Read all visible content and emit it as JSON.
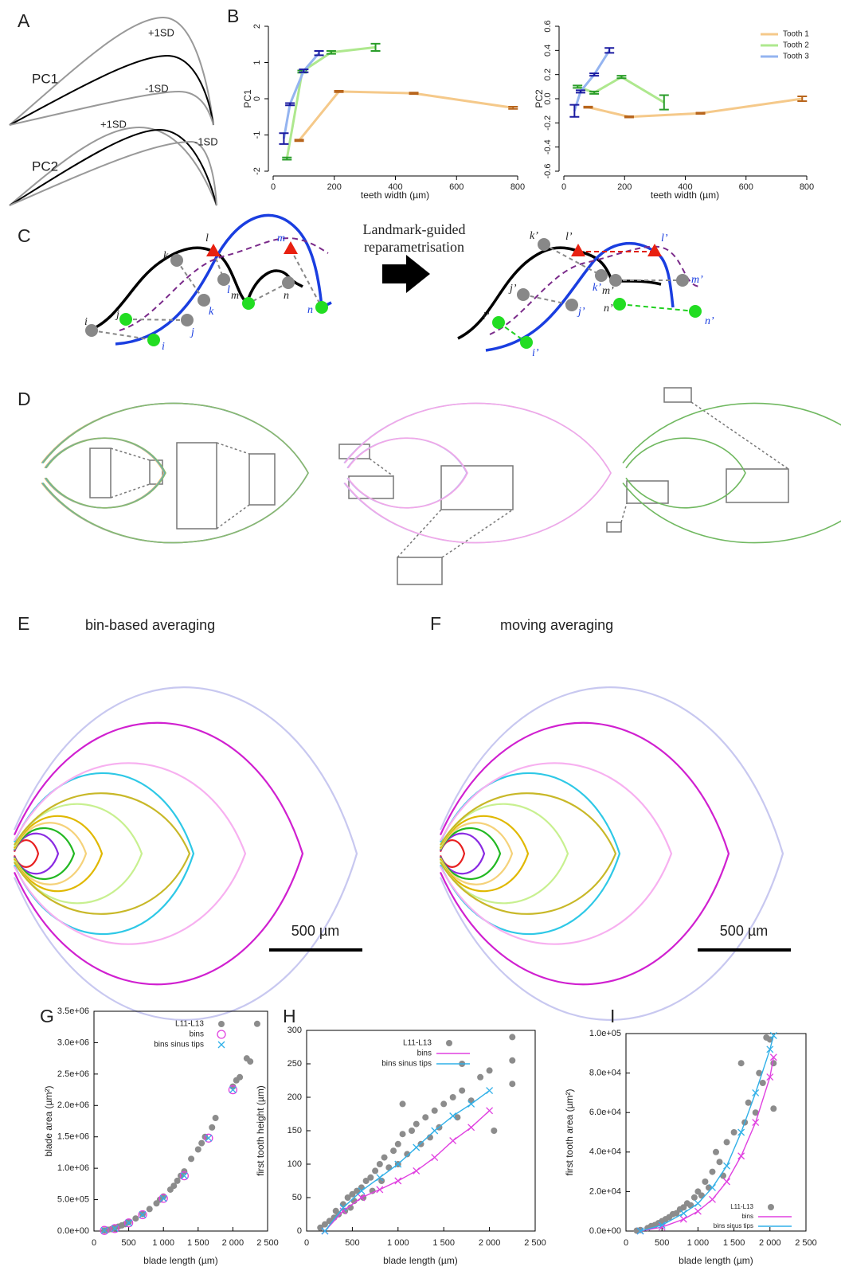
{
  "panel_labels": [
    "A",
    "B",
    "C",
    "D",
    "E",
    "F",
    "G",
    "H",
    "I"
  ],
  "panel_a": {
    "rows": [
      {
        "label": "PC1",
        "plus": "+1SD",
        "minus": "-1SD"
      },
      {
        "label": "PC2",
        "plus": "+1SD",
        "minus": "-1SD"
      }
    ]
  },
  "panel_c": {
    "caption": [
      "Landmark-guided",
      "reparametrisation"
    ],
    "left_landmarks": [
      "i",
      "j",
      "k",
      "l",
      "m",
      "n"
    ],
    "right_landmarks": [
      "i’",
      "j’",
      "k’",
      "l’",
      "m’",
      "n’"
    ]
  },
  "panel_e": {
    "title": "bin-based averaging",
    "scale_bar": "500 µm"
  },
  "panel_f": {
    "title": "moving averaging",
    "scale_bar": "500 µm"
  },
  "chart_data": [
    {
      "type": "line",
      "x_label": "teeth width (µm)",
      "y_label": "PC1",
      "xlim": [
        0,
        800
      ],
      "xticks": [
        0,
        200,
        400,
        600,
        800
      ],
      "ylim": [
        -2,
        2
      ],
      "yticks": [
        -2,
        -1,
        0,
        1,
        2
      ],
      "series": [
        {
          "color": "#f5c98a",
          "error_color": "#b8651c",
          "x": [
            85,
            215,
            460,
            785
          ],
          "values": [
            -1.15,
            0.2,
            0.15,
            -0.25
          ],
          "errors": [
            0.02,
            0.02,
            0.02,
            0.03
          ]
        },
        {
          "color": "#aee88e",
          "error_color": "#2a9d2a",
          "x": [
            45,
            95,
            190,
            335
          ],
          "values": [
            -1.65,
            0.75,
            1.28,
            1.42
          ],
          "errors": [
            0.03,
            0.03,
            0.04,
            0.1
          ]
        },
        {
          "color": "#94b4f0",
          "error_color": "#1a1aa0",
          "x": [
            35,
            55,
            100,
            150
          ],
          "values": [
            -1.1,
            -0.15,
            0.77,
            1.26
          ],
          "errors": [
            0.15,
            0.03,
            0.04,
            0.06
          ]
        }
      ]
    },
    {
      "type": "line",
      "x_label": "teeth width (µm)",
      "y_label": "PC2",
      "xlim": [
        0,
        800
      ],
      "xticks": [
        0,
        200,
        400,
        600,
        800
      ],
      "ylim": [
        -0.6,
        0.6
      ],
      "yticks": [
        -0.6,
        -0.4,
        -0.2,
        {
          "value": 0,
          "label": "0.0"
        },
        0.2,
        0.4,
        0.6
      ],
      "legend": "upper right",
      "series": [
        {
          "name": "Tooth 1",
          "color": "#f5c98a",
          "error_color": "#b8651c",
          "x": [
            80,
            215,
            450,
            785
          ],
          "values": [
            -0.07,
            -0.15,
            -0.12,
            0.0
          ],
          "errors": [
            0.005,
            0.005,
            0.005,
            0.02
          ]
        },
        {
          "name": "Tooth 2",
          "color": "#aee88e",
          "error_color": "#2a9d2a",
          "x": [
            45,
            100,
            190,
            330
          ],
          "values": [
            0.1,
            0.05,
            0.18,
            -0.03
          ],
          "errors": [
            0.01,
            0.01,
            0.01,
            0.06
          ]
        },
        {
          "name": "Tooth 3",
          "color": "#94b4f0",
          "error_color": "#1a1aa0",
          "x": [
            35,
            55,
            100,
            150
          ],
          "values": [
            -0.1,
            0.06,
            0.2,
            0.4
          ],
          "errors": [
            0.05,
            0.01,
            0.01,
            0.02
          ]
        }
      ]
    },
    {
      "type": "scatter",
      "x_label": "blade length (µm)",
      "y_label": "blade area (µm²)",
      "xlim": [
        0,
        2500
      ],
      "xticks": [
        0,
        500,
        {
          "value": 1000,
          "label": "1 000"
        },
        {
          "value": 1500,
          "label": "1 500"
        },
        {
          "value": 2000,
          "label": "2 000"
        },
        {
          "value": 2500,
          "label": "2 500"
        }
      ],
      "ylim": [
        0,
        3500000
      ],
      "yticks": [
        {
          "value": 0,
          "label": "0.0e+00"
        },
        {
          "value": 500000,
          "label": "5.0e+05"
        },
        {
          "value": 1000000,
          "label": "1.0e+06"
        },
        {
          "value": 1500000,
          "label": "1.5e+06"
        },
        {
          "value": 2000000,
          "label": "2.0e+06"
        },
        {
          "value": 2500000,
          "label": "2.5e+06"
        },
        {
          "value": 3000000,
          "label": "3.0e+06"
        },
        {
          "value": 3500000,
          "label": "3.5e+06"
        }
      ],
      "legend": "upper right",
      "series": [
        {
          "name": "L11-L13",
          "color": "#8c8c8c",
          "marker": "circle",
          "x": [
            150,
            200,
            250,
            300,
            350,
            400,
            450,
            500,
            600,
            700,
            800,
            900,
            950,
            1000,
            1100,
            1150,
            1200,
            1250,
            1300,
            1400,
            1500,
            1550,
            1600,
            1700,
            1750,
            2000,
            2050,
            2100,
            2200,
            2250,
            2350
          ],
          "values": [
            10000,
            20000,
            30000,
            50000,
            70000,
            90000,
            110000,
            140000,
            200000,
            270000,
            350000,
            440000,
            500000,
            550000,
            660000,
            720000,
            800000,
            880000,
            950000,
            1150000,
            1300000,
            1400000,
            1500000,
            1650000,
            1800000,
            2300000,
            2400000,
            2450000,
            2750000,
            2700000,
            3300000
          ]
        },
        {
          "name": "bins",
          "color": "#e040e0",
          "marker": "open-circle",
          "x": [
            150,
            300,
            500,
            700,
            1000,
            1300,
            1650,
            2000
          ],
          "values": [
            10000,
            40000,
            130000,
            260000,
            520000,
            880000,
            1480000,
            2250000
          ]
        },
        {
          "name": "bins sinus tips",
          "color": "#30b0e8",
          "marker": "x",
          "x": [
            150,
            300,
            500,
            700,
            1000,
            1300,
            1650,
            2000
          ],
          "values": [
            10000,
            40000,
            130000,
            260000,
            520000,
            880000,
            1480000,
            2250000
          ]
        }
      ]
    },
    {
      "type": "scatter",
      "x_label": "blade length (µm)",
      "y_label": "first tooth height (µm)",
      "xlim": [
        0,
        2500
      ],
      "xticks": [
        0,
        500,
        {
          "value": 1000,
          "label": "1 000"
        },
        {
          "value": 1500,
          "label": "1 500"
        },
        {
          "value": 2000,
          "label": "2 000"
        },
        {
          "value": 2500,
          "label": "2 500"
        }
      ],
      "ylim": [
        0,
        300
      ],
      "yticks": [
        0,
        50,
        100,
        150,
        200,
        250,
        300
      ],
      "legend": "upper left",
      "series": [
        {
          "name": "L11-L13",
          "color": "#8c8c8c",
          "marker": "circle",
          "x": [
            150,
            200,
            250,
            300,
            320,
            350,
            400,
            420,
            450,
            480,
            500,
            520,
            550,
            600,
            620,
            650,
            700,
            720,
            750,
            800,
            820,
            850,
            900,
            950,
            1000,
            1000,
            1050,
            1100,
            1150,
            1200,
            1250,
            1300,
            1350,
            1400,
            1450,
            1500,
            1600,
            1650,
            1700,
            1800,
            1900,
            2000,
            2050,
            2250,
            2250,
            2250,
            1050,
            1700
          ],
          "values": [
            5,
            10,
            15,
            20,
            30,
            25,
            40,
            30,
            50,
            35,
            55,
            45,
            60,
            65,
            50,
            75,
            80,
            60,
            90,
            100,
            75,
            110,
            95,
            120,
            130,
            100,
            145,
            115,
            150,
            160,
            130,
            170,
            140,
            180,
            155,
            190,
            200,
            170,
            210,
            195,
            230,
            240,
            150,
            290,
            255,
            220,
            190,
            250
          ]
        },
        {
          "name": "bins",
          "color": "#e040e0",
          "line": true,
          "marker": "x",
          "x": [
            200,
            400,
            600,
            800,
            1000,
            1200,
            1400,
            1600,
            1800,
            2000
          ],
          "values": [
            0,
            30,
            50,
            62,
            75,
            90,
            110,
            135,
            155,
            180
          ]
        },
        {
          "name": "bins sinus tips",
          "color": "#30b0e8",
          "line": true,
          "marker": "x",
          "x": [
            200,
            400,
            600,
            800,
            1000,
            1200,
            1400,
            1600,
            1800,
            2000
          ],
          "values": [
            0,
            35,
            60,
            80,
            100,
            125,
            150,
            172,
            190,
            210
          ]
        }
      ]
    },
    {
      "type": "scatter",
      "x_label": "blade length (µm)",
      "y_label": "first tooth area (µm²)",
      "xlim": [
        0,
        2500
      ],
      "xticks": [
        0,
        500,
        {
          "value": 1000,
          "label": "1 000"
        },
        {
          "value": 1500,
          "label": "1 500"
        },
        {
          "value": 2000,
          "label": "2 000"
        },
        {
          "value": 2500,
          "label": "2 500"
        }
      ],
      "ylim": [
        0,
        100000
      ],
      "yticks": [
        {
          "value": 0,
          "label": "0.0e+00"
        },
        {
          "value": 20000,
          "label": "2.0e+04"
        },
        {
          "value": 40000,
          "label": "4.0e+04"
        },
        {
          "value": 60000,
          "label": "6.0e+04"
        },
        {
          "value": 80000,
          "label": "8.0e+04"
        },
        {
          "value": 100000,
          "label": "1.0e+05"
        }
      ],
      "legend": "lower right",
      "series": [
        {
          "name": "L11-L13",
          "color": "#8c8c8c",
          "marker": "circle",
          "x": [
            150,
            200,
            300,
            350,
            400,
            450,
            500,
            550,
            600,
            650,
            700,
            750,
            800,
            850,
            900,
            950,
            1000,
            1050,
            1100,
            1150,
            1200,
            1250,
            1300,
            1350,
            1400,
            1500,
            1600,
            1650,
            1700,
            1800,
            1850,
            1900,
            1950,
            2000,
            2050,
            2050
          ],
          "values": [
            200,
            500,
            1500,
            2500,
            3000,
            4000,
            5000,
            6000,
            7000,
            8500,
            9000,
            11000,
            12000,
            14000,
            13000,
            17000,
            20000,
            18000,
            25000,
            22000,
            30000,
            40000,
            35000,
            28000,
            45000,
            50000,
            85000,
            55000,
            65000,
            60000,
            80000,
            75000,
            98000,
            97000,
            85000,
            62000
          ]
        },
        {
          "name": "bins",
          "color": "#e040e0",
          "line": true,
          "marker": "x",
          "x": [
            200,
            500,
            800,
            1000,
            1200,
            1400,
            1600,
            1800,
            2000,
            2050
          ],
          "values": [
            0,
            2000,
            6000,
            10000,
            16000,
            25000,
            38000,
            55000,
            78000,
            88000
          ]
        },
        {
          "name": "bins sinus tips",
          "color": "#30b0e8",
          "line": true,
          "marker": "x",
          "x": [
            200,
            500,
            800,
            1000,
            1200,
            1400,
            1600,
            1800,
            2000,
            2050
          ],
          "values": [
            0,
            3000,
            9000,
            14000,
            22000,
            33000,
            50000,
            70000,
            92000,
            99000
          ]
        }
      ]
    }
  ]
}
